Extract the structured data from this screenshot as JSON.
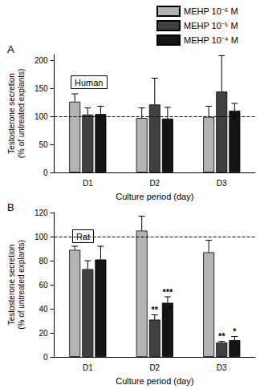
{
  "chart_data": [
    {
      "type": "bar",
      "title": "A",
      "annotation": "Human",
      "categories": [
        "D1",
        "D2",
        "D3"
      ],
      "xlabel": "Culture period (day)",
      "ylabel": "Testosterone secretion\n(% of untreated explants)",
      "ylim": [
        0,
        210
      ],
      "yticks": [
        0,
        50,
        100,
        150,
        200
      ],
      "reference_line": 100,
      "grid": false,
      "legend": "top right",
      "series": [
        {
          "name": "MEHP 10⁻⁶ M",
          "color": "#b3b3b3",
          "values": [
            126,
            97,
            99
          ],
          "errors": [
            14,
            18,
            19
          ]
        },
        {
          "name": "MEHP 10⁻⁵ M",
          "color": "#404040",
          "values": [
            103,
            121,
            144
          ],
          "errors": [
            12,
            47,
            64
          ]
        },
        {
          "name": "MEHP 10⁻⁴ M",
          "color": "#141414",
          "values": [
            104,
            96,
            110
          ],
          "errors": [
            14,
            20,
            13
          ]
        }
      ]
    },
    {
      "type": "bar",
      "title": "B",
      "annotation": "Rat",
      "categories": [
        "D1",
        "D2",
        "D3"
      ],
      "xlabel": "Culture period (day)",
      "ylabel": "Testosterone secretion\n(% of untreated explants)",
      "ylim": [
        0,
        120
      ],
      "yticks": [
        0,
        20,
        40,
        60,
        80,
        100,
        120
      ],
      "reference_line": 100,
      "grid": false,
      "series": [
        {
          "name": "MEHP 10⁻⁶ M",
          "color": "#b3b3b3",
          "values": [
            89,
            105,
            87
          ],
          "errors": [
            3,
            12,
            10
          ]
        },
        {
          "name": "MEHP 10⁻⁵ M",
          "color": "#404040",
          "values": [
            73,
            31,
            12
          ],
          "errors": [
            7,
            4,
            1
          ],
          "significance": [
            null,
            "**",
            "**"
          ]
        },
        {
          "name": "MEHP 10⁻⁴ M",
          "color": "#141414",
          "values": [
            81,
            45,
            14
          ],
          "errors": [
            11,
            5,
            3
          ],
          "significance": [
            null,
            "***",
            "*"
          ]
        }
      ]
    }
  ]
}
